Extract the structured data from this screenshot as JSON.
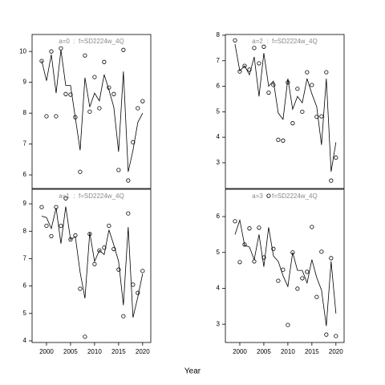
{
  "x_label": "Year",
  "chart_data": [
    {
      "type": "line",
      "title": "a=0  :  f=SD2224w_4Q",
      "x": [
        1999,
        2000,
        2001,
        2002,
        2003,
        2004,
        2005,
        2006,
        2007,
        2008,
        2009,
        2010,
        2011,
        2012,
        2013,
        2014,
        2015,
        2016,
        2017,
        2018,
        2019,
        2020
      ],
      "series": [
        {
          "mode": "markers",
          "color": "#000000",
          "values": [
            9.69,
            7.9,
            10.0,
            7.9,
            10.1,
            8.62,
            8.6,
            7.87,
            6.1,
            9.87,
            8.05,
            9.17,
            8.16,
            9.66,
            8.83,
            8.62,
            6.16,
            10.05,
            5.82,
            7.06,
            8.16,
            8.39
          ]
        },
        {
          "mode": "lines",
          "color": "#000000",
          "values": [
            9.7,
            9.05,
            9.9,
            8.65,
            10.05,
            8.9,
            8.9,
            7.85,
            6.8,
            9.15,
            8.2,
            8.65,
            8.4,
            9.25,
            8.75,
            8.2,
            6.75,
            9.35,
            6.1,
            6.8,
            7.7,
            8.0
          ]
        }
      ],
      "xlim": [
        1997,
        2021.7
      ],
      "ylim": [
        5.56,
        10.55
      ],
      "yticks": [
        6,
        7,
        8,
        9,
        10
      ]
    },
    {
      "type": "line",
      "title": "a=1  :  f=SD2224w_4Q",
      "x": [
        1999,
        2000,
        2001,
        2002,
        2003,
        2004,
        2005,
        2006,
        2007,
        2008,
        2009,
        2010,
        2011,
        2012,
        2013,
        2014,
        2015,
        2016,
        2017,
        2018,
        2019,
        2020
      ],
      "series": [
        {
          "mode": "markers",
          "color": "#000000",
          "values": [
            8.88,
            8.2,
            7.82,
            8.88,
            8.2,
            9.2,
            7.7,
            7.85,
            5.9,
            4.15,
            7.9,
            6.8,
            7.3,
            7.4,
            8.2,
            7.35,
            6.6,
            4.9,
            8.65,
            6.05,
            5.75,
            6.55
          ]
        },
        {
          "mode": "lines",
          "color": "#000000",
          "values": [
            8.55,
            8.5,
            8.1,
            8.85,
            7.55,
            8.9,
            7.7,
            7.8,
            6.5,
            5.55,
            7.95,
            6.9,
            7.3,
            7.15,
            8.05,
            7.5,
            6.9,
            5.3,
            8.15,
            4.85,
            5.6,
            6.45
          ]
        }
      ],
      "xlim": [
        1997,
        2021.7
      ],
      "ylim": [
        3.94,
        9.53
      ],
      "xticks": [
        2000,
        2005,
        2010,
        2015,
        2020
      ],
      "yticks": [
        4,
        5,
        6,
        7,
        8,
        9
      ]
    },
    {
      "type": "line",
      "title": "a=2  :  f=SD2224w_4Q",
      "x": [
        1999,
        2000,
        2001,
        2002,
        2003,
        2004,
        2005,
        2006,
        2007,
        2008,
        2009,
        2010,
        2011,
        2012,
        2013,
        2014,
        2015,
        2016,
        2017,
        2018,
        2019,
        2020
      ],
      "series": [
        {
          "mode": "markers",
          "color": "#000000",
          "values": [
            7.8,
            6.58,
            6.8,
            6.65,
            7.5,
            6.9,
            7.55,
            5.75,
            6.05,
            3.9,
            3.87,
            6.15,
            4.55,
            5.9,
            5.0,
            6.55,
            6.05,
            4.8,
            4.82,
            6.55,
            2.3,
            3.2
          ]
        },
        {
          "mode": "lines",
          "color": "#000000",
          "values": [
            7.65,
            6.6,
            6.8,
            6.45,
            7.15,
            5.6,
            7.3,
            6.0,
            6.2,
            4.95,
            4.7,
            6.3,
            5.1,
            5.6,
            5.35,
            6.3,
            5.7,
            5.2,
            3.7,
            6.3,
            2.65,
            3.8
          ]
        }
      ],
      "xlim": [
        1997,
        2021.7
      ],
      "ylim": [
        1.99,
        8.03
      ],
      "yticks": [
        3,
        4,
        5,
        6,
        7,
        8
      ]
    },
    {
      "type": "line",
      "title": "a=3  :  f=SD2224w_4Q",
      "x": [
        1999,
        2000,
        2001,
        2002,
        2003,
        2004,
        2005,
        2006,
        2007,
        2008,
        2009,
        2010,
        2011,
        2012,
        2013,
        2014,
        2015,
        2016,
        2017,
        2018,
        2019,
        2020
      ],
      "series": [
        {
          "mode": "markers",
          "color": "#000000",
          "values": [
            5.87,
            4.73,
            5.22,
            5.67,
            4.75,
            5.69,
            4.86,
            6.58,
            5.1,
            4.21,
            4.52,
            2.98,
            5.0,
            3.99,
            4.28,
            4.46,
            5.71,
            3.76,
            5.02,
            2.71,
            4.84,
            2.67
          ]
        },
        {
          "mode": "lines",
          "color": "#000000",
          "values": [
            5.5,
            5.9,
            5.2,
            5.15,
            4.8,
            5.5,
            4.6,
            5.7,
            4.9,
            4.75,
            4.35,
            4.05,
            5.0,
            4.5,
            4.5,
            4.15,
            4.8,
            4.3,
            3.95,
            2.95,
            4.75,
            3.3
          ]
        }
      ],
      "xlim": [
        1997,
        2021.7
      ],
      "ylim": [
        2.49,
        6.76
      ],
      "xticks": [
        2000,
        2005,
        2010,
        2015,
        2020
      ],
      "yticks": [
        3,
        4,
        5,
        6
      ]
    }
  ]
}
